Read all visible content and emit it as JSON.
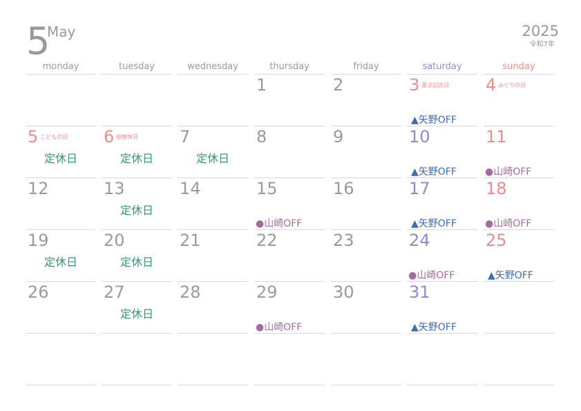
{
  "header": {
    "month_number": "5",
    "month_name": "May",
    "year": "2025",
    "era": "令和7年"
  },
  "weekdays": [
    "monday",
    "tuesday",
    "wednesday",
    "thursday",
    "friday",
    "saturday",
    "sunday"
  ],
  "icons": {
    "yano": "triangle-icon",
    "yamazaki": "circle-icon"
  },
  "colors": {
    "saturday": "#8b8bd6",
    "sunday_holiday": "#ef8b8b",
    "closed": "#2f9a72",
    "yano": "#3d6cb3",
    "yamazaki": "#a86aa3"
  },
  "rows": [
    [
      {
        "day": ""
      },
      {
        "day": ""
      },
      {
        "day": ""
      },
      {
        "day": "1"
      },
      {
        "day": "2"
      },
      {
        "day": "3",
        "holiday": "憲法記念日",
        "note": "▲矢野OFF",
        "note_type": "yano"
      },
      {
        "day": "4",
        "holiday": "みどりの日"
      }
    ],
    [
      {
        "day": "5",
        "holiday": "こどもの日",
        "note": "定休日",
        "note_type": "closed"
      },
      {
        "day": "6",
        "holiday": "振替休日",
        "note": "定休日",
        "note_type": "closed"
      },
      {
        "day": "7",
        "note": "定休日",
        "note_type": "closed"
      },
      {
        "day": "8"
      },
      {
        "day": "9"
      },
      {
        "day": "10",
        "note": "▲矢野OFF",
        "note_type": "yano"
      },
      {
        "day": "11",
        "note": "●山崎OFF",
        "note_type": "yamazaki"
      }
    ],
    [
      {
        "day": "12"
      },
      {
        "day": "13",
        "note": "定休日",
        "note_type": "closed"
      },
      {
        "day": "14"
      },
      {
        "day": "15",
        "note": "●山崎OFF",
        "note_type": "yamazaki"
      },
      {
        "day": "16"
      },
      {
        "day": "17",
        "note": "▲矢野OFF",
        "note_type": "yano"
      },
      {
        "day": "18",
        "note": "●山崎OFF",
        "note_type": "yamazaki"
      }
    ],
    [
      {
        "day": "19",
        "note": "定休日",
        "note_type": "closed"
      },
      {
        "day": "20",
        "note": "定休日",
        "note_type": "closed"
      },
      {
        "day": "21"
      },
      {
        "day": "22"
      },
      {
        "day": "23"
      },
      {
        "day": "24",
        "note": "●山崎OFF",
        "note_type": "yamazaki"
      },
      {
        "day": "25",
        "note": "▲矢野OFF",
        "note_type": "yano"
      }
    ],
    [
      {
        "day": "26"
      },
      {
        "day": "27",
        "note": "定休日",
        "note_type": "closed"
      },
      {
        "day": "28"
      },
      {
        "day": "29",
        "note": "●山崎OFF",
        "note_type": "yamazaki"
      },
      {
        "day": "30"
      },
      {
        "day": "31",
        "note": "▲矢野OFF",
        "note_type": "yano"
      },
      {
        "day": ""
      }
    ],
    [
      {
        "day": ""
      },
      {
        "day": ""
      },
      {
        "day": ""
      },
      {
        "day": ""
      },
      {
        "day": ""
      },
      {
        "day": ""
      },
      {
        "day": ""
      }
    ]
  ]
}
